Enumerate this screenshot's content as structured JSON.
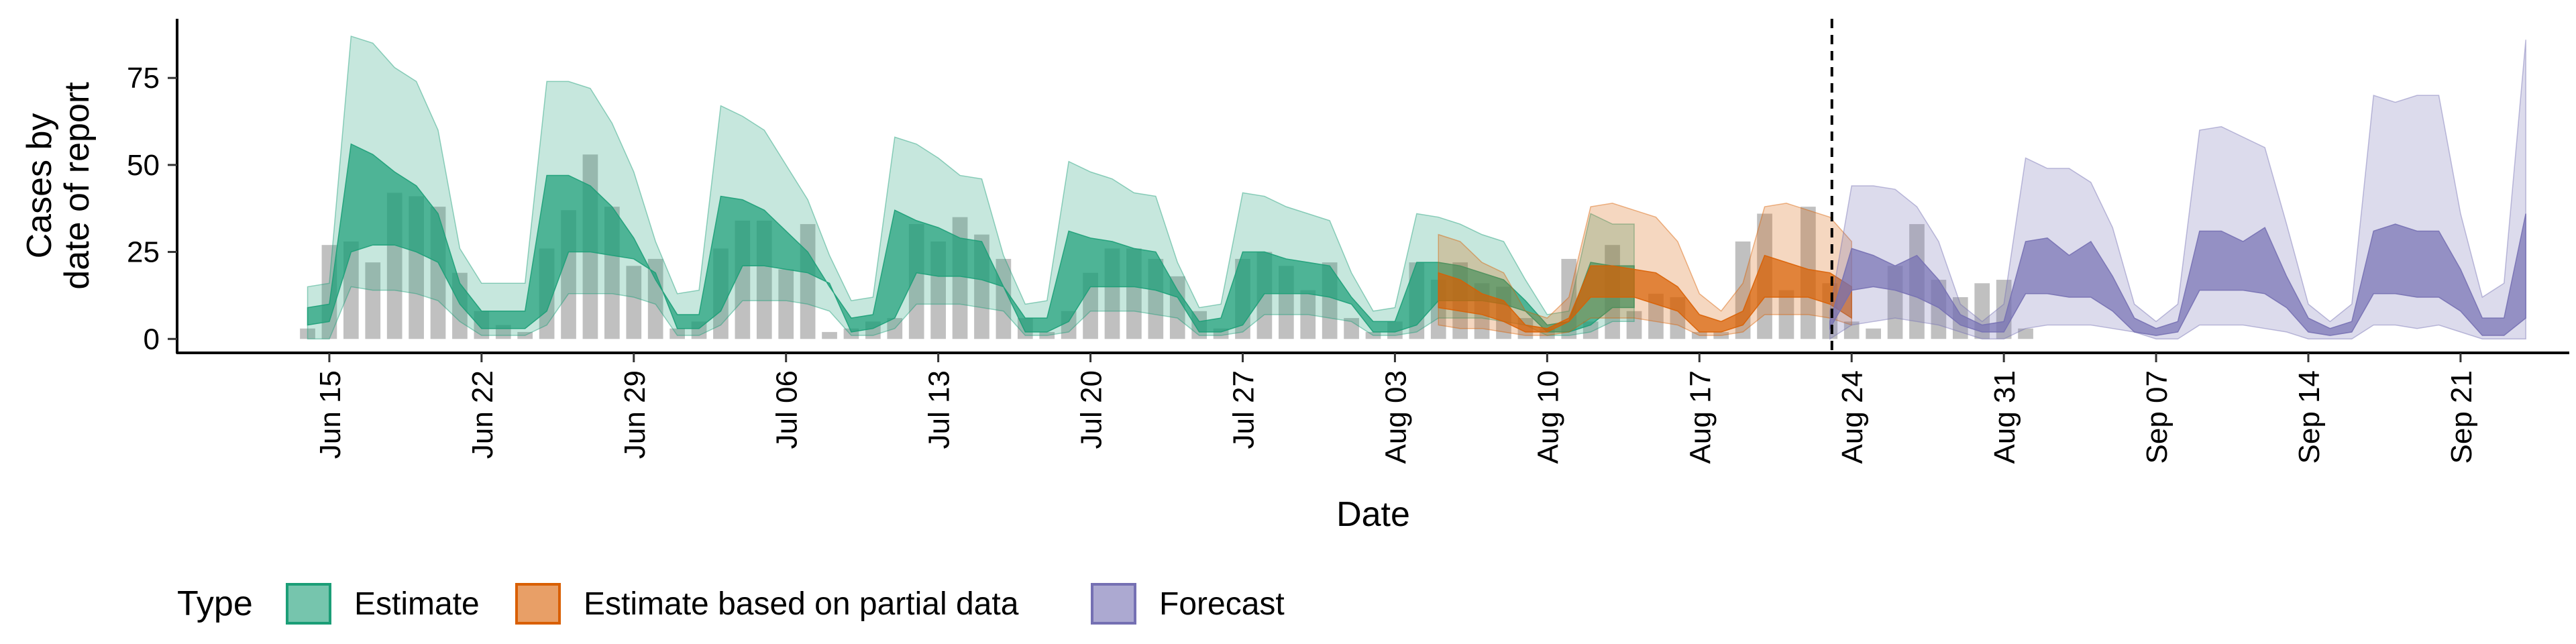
{
  "chart_data": {
    "type": "area",
    "xlabel": "Date",
    "ylabel_lines": [
      "Cases by",
      "date of report"
    ],
    "y_ticks": [
      0,
      25,
      50,
      75
    ],
    "ylim": [
      -4,
      92
    ],
    "xlim": [
      "2020-06-08",
      "2020-09-26"
    ],
    "x_tick_labels": [
      {
        "date": "2020-06-15",
        "label": "Jun 15"
      },
      {
        "date": "2020-06-22",
        "label": "Jun 22"
      },
      {
        "date": "2020-06-29",
        "label": "Jun 29"
      },
      {
        "date": "2020-07-06",
        "label": "Jul 06"
      },
      {
        "date": "2020-07-13",
        "label": "Jul 13"
      },
      {
        "date": "2020-07-20",
        "label": "Jul 20"
      },
      {
        "date": "2020-07-27",
        "label": "Jul 27"
      },
      {
        "date": "2020-08-03",
        "label": "Aug 03"
      },
      {
        "date": "2020-08-10",
        "label": "Aug 10"
      },
      {
        "date": "2020-08-17",
        "label": "Aug 17"
      },
      {
        "date": "2020-08-24",
        "label": "Aug 24"
      },
      {
        "date": "2020-08-31",
        "label": "Aug 31"
      },
      {
        "date": "2020-09-07",
        "label": "Sep 07"
      },
      {
        "date": "2020-09-14",
        "label": "Sep 14"
      },
      {
        "date": "2020-09-21",
        "label": "Sep 21"
      }
    ],
    "forecast_cutoff_date": "2020-08-23",
    "observed_start": "2020-06-14",
    "observed": [
      3,
      27,
      28,
      22,
      42,
      41,
      38,
      19,
      8,
      4,
      2,
      26,
      37,
      53,
      38,
      21,
      23,
      3,
      5,
      26,
      34,
      34,
      20,
      33,
      2,
      3,
      5,
      6,
      33,
      28,
      35,
      30,
      23,
      6,
      2,
      8,
      19,
      26,
      26,
      23,
      18,
      8,
      3,
      23,
      25,
      21,
      14,
      22,
      6,
      2,
      5,
      22,
      17,
      22,
      16,
      15,
      6,
      3,
      23,
      5,
      27,
      8,
      13,
      12,
      2,
      2,
      28,
      36,
      14,
      38,
      16,
      5,
      3,
      21,
      33,
      17,
      12,
      16,
      17,
      3
    ],
    "legend_title": "Type",
    "series": [
      {
        "name": "Estimate",
        "color": "#1B9E77",
        "start": "2020-06-14",
        "outer_lower": [
          0,
          0,
          15,
          14,
          14,
          13,
          11,
          5,
          1,
          1,
          1,
          4,
          13,
          13,
          13,
          12,
          10,
          1,
          1,
          4,
          11,
          11,
          11,
          10,
          8,
          1,
          1,
          3,
          10,
          10,
          10,
          9,
          8,
          1,
          1,
          2,
          8,
          8,
          8,
          7,
          6,
          1,
          1,
          2,
          7,
          7,
          7,
          6,
          5,
          1,
          1,
          2,
          6,
          6,
          6,
          5,
          4,
          1,
          1,
          2,
          5,
          5
        ],
        "outer_upper": [
          15,
          16,
          87,
          85,
          78,
          74,
          60,
          26,
          16,
          16,
          16,
          74,
          74,
          72,
          62,
          48,
          28,
          13,
          14,
          67,
          64,
          60,
          50,
          40,
          24,
          11,
          12,
          58,
          56,
          52,
          47,
          46,
          24,
          10,
          11,
          51,
          48,
          46,
          42,
          41,
          22,
          9,
          10,
          42,
          41,
          38,
          36,
          34,
          19,
          8,
          9,
          36,
          35,
          33,
          30,
          28,
          17,
          7,
          8,
          36,
          33,
          33
        ],
        "inner_lower": [
          4,
          5,
          25,
          27,
          27,
          25,
          22,
          10,
          3,
          3,
          3,
          8,
          25,
          25,
          24,
          23,
          19,
          3,
          3,
          8,
          21,
          21,
          20,
          19,
          16,
          2,
          3,
          6,
          19,
          18,
          18,
          17,
          15,
          2,
          2,
          5,
          15,
          15,
          15,
          14,
          12,
          2,
          2,
          4,
          13,
          13,
          13,
          12,
          10,
          2,
          2,
          4,
          11,
          11,
          11,
          10,
          8,
          2,
          2,
          4,
          9,
          9
        ],
        "inner_upper": [
          9,
          10,
          56,
          53,
          48,
          44,
          36,
          16,
          8,
          8,
          8,
          47,
          47,
          44,
          38,
          29,
          17,
          7,
          7,
          41,
          40,
          37,
          31,
          25,
          15,
          6,
          7,
          37,
          34,
          32,
          29,
          28,
          15,
          6,
          6,
          31,
          29,
          28,
          26,
          25,
          14,
          5,
          6,
          25,
          25,
          23,
          22,
          21,
          12,
          5,
          5,
          22,
          22,
          21,
          19,
          17,
          11,
          4,
          5,
          22,
          21,
          21
        ]
      },
      {
        "name": "Estimate based on partial data",
        "color": "#D95F02",
        "start": "2020-08-05",
        "outer_lower": [
          4,
          3,
          3,
          2,
          1,
          1,
          2,
          6,
          6,
          6,
          5,
          4,
          1,
          1,
          2,
          7,
          7,
          7,
          6,
          4
        ],
        "outer_upper": [
          30,
          28,
          22,
          19,
          8,
          6,
          12,
          38,
          39,
          37,
          35,
          28,
          13,
          8,
          16,
          38,
          39,
          37,
          35,
          28
        ],
        "inner_lower": [
          9,
          8,
          7,
          5,
          2,
          2,
          5,
          12,
          12,
          12,
          10,
          8,
          2,
          2,
          4,
          12,
          12,
          12,
          10,
          6
        ],
        "inner_upper": [
          19,
          17,
          13,
          11,
          4,
          3,
          6,
          21,
          21,
          20,
          19,
          15,
          7,
          5,
          8,
          24,
          22,
          20,
          19,
          15
        ]
      },
      {
        "name": "Forecast",
        "color": "#7570B3",
        "start": "2020-08-23",
        "outer_lower": [
          0,
          4,
          5,
          6,
          5,
          4,
          2,
          0,
          0,
          3,
          4,
          4,
          4,
          3,
          2,
          0,
          0,
          4,
          4,
          4,
          3,
          2,
          0,
          0,
          0,
          4,
          4,
          3,
          4,
          2,
          0,
          0,
          0
        ],
        "outer_upper": [
          8,
          44,
          44,
          43,
          38,
          28,
          10,
          5,
          10,
          52,
          49,
          49,
          45,
          32,
          10,
          5,
          10,
          60,
          61,
          58,
          55,
          33,
          10,
          5,
          10,
          70,
          68,
          70,
          70,
          36,
          12,
          16,
          86
        ],
        "inner_lower": [
          3,
          14,
          15,
          14,
          12,
          9,
          4,
          2,
          2,
          13,
          13,
          12,
          12,
          8,
          2,
          1,
          2,
          14,
          14,
          14,
          13,
          9,
          2,
          1,
          2,
          13,
          13,
          12,
          12,
          8,
          1,
          1,
          6
        ],
        "inner_upper": [
          5,
          26,
          24,
          21,
          24,
          17,
          7,
          4,
          5,
          28,
          29,
          24,
          28,
          18,
          6,
          3,
          5,
          31,
          31,
          28,
          32,
          18,
          6,
          3,
          5,
          31,
          33,
          31,
          31,
          20,
          6,
          6,
          36
        ]
      }
    ]
  }
}
